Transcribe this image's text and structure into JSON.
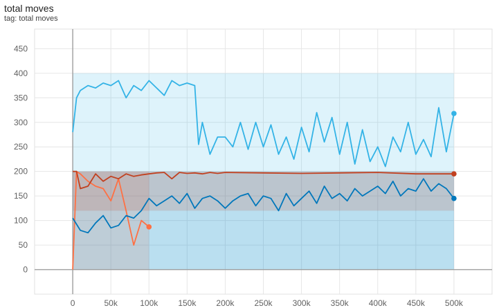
{
  "header": {
    "title": "total moves",
    "subtitle": "tag: total moves"
  },
  "chart_data": {
    "type": "line",
    "title": "total moves",
    "subtitle": "tag: total moves",
    "xlabel": "",
    "ylabel": "",
    "xlim": [
      -50000,
      550000
    ],
    "ylim": [
      -50,
      490
    ],
    "grid": true,
    "x_ticks": [
      "0",
      "50k",
      "100k",
      "150k",
      "200k",
      "250k",
      "300k",
      "350k",
      "400k",
      "450k",
      "500k"
    ],
    "x_tick_values": [
      0,
      50000,
      100000,
      150000,
      200000,
      250000,
      300000,
      350000,
      400000,
      450000,
      500000
    ],
    "y_ticks": [
      "0",
      "50",
      "100",
      "150",
      "200",
      "250",
      "300",
      "350",
      "400",
      "450"
    ],
    "y_tick_values": [
      0,
      50,
      100,
      150,
      200,
      250,
      300,
      350,
      400,
      450
    ],
    "series": [
      {
        "color": "#33b3e6",
        "raw_band": [
          0,
          400
        ],
        "x": [
          0,
          5000,
          10000,
          20000,
          30000,
          40000,
          50000,
          60000,
          70000,
          80000,
          90000,
          100000,
          110000,
          120000,
          130000,
          140000,
          150000,
          160000,
          165000,
          170000,
          180000,
          190000,
          200000,
          210000,
          220000,
          230000,
          240000,
          250000,
          260000,
          270000,
          280000,
          290000,
          300000,
          310000,
          320000,
          330000,
          340000,
          350000,
          360000,
          370000,
          380000,
          390000,
          400000,
          410000,
          420000,
          430000,
          440000,
          450000,
          460000,
          470000,
          480000,
          490000,
          500000
        ],
        "values": [
          280,
          350,
          365,
          375,
          370,
          380,
          375,
          385,
          350,
          375,
          365,
          385,
          370,
          355,
          385,
          375,
          380,
          375,
          255,
          300,
          235,
          270,
          270,
          250,
          300,
          245,
          300,
          250,
          295,
          235,
          270,
          225,
          290,
          240,
          320,
          260,
          310,
          235,
          300,
          215,
          285,
          220,
          250,
          210,
          270,
          240,
          300,
          235,
          265,
          230,
          330,
          240,
          318
        ]
      },
      {
        "color": "#ff7043",
        "raw_band": [
          0,
          200
        ],
        "x": [
          0,
          5000,
          10000,
          20000,
          30000,
          40000,
          50000,
          60000,
          70000,
          80000,
          90000,
          100000
        ],
        "values": [
          0,
          200,
          195,
          180,
          170,
          165,
          140,
          185,
          120,
          50,
          100,
          87
        ]
      },
      {
        "color": "#0077bb",
        "raw_band": [
          0,
          200
        ],
        "x": [
          0,
          10000,
          20000,
          30000,
          40000,
          50000,
          60000,
          70000,
          80000,
          90000,
          100000,
          110000,
          120000,
          130000,
          140000,
          150000,
          160000,
          170000,
          180000,
          190000,
          200000,
          210000,
          220000,
          230000,
          240000,
          250000,
          260000,
          270000,
          280000,
          290000,
          300000,
          310000,
          320000,
          330000,
          340000,
          350000,
          360000,
          370000,
          380000,
          390000,
          400000,
          410000,
          420000,
          430000,
          440000,
          450000,
          460000,
          470000,
          480000,
          490000,
          500000
        ],
        "values": [
          105,
          80,
          75,
          95,
          110,
          85,
          90,
          110,
          105,
          120,
          145,
          130,
          140,
          150,
          135,
          155,
          125,
          145,
          150,
          140,
          125,
          140,
          150,
          155,
          130,
          150,
          145,
          120,
          155,
          130,
          145,
          160,
          135,
          170,
          145,
          155,
          140,
          165,
          150,
          160,
          170,
          155,
          180,
          150,
          165,
          160,
          185,
          160,
          175,
          165,
          145
        ]
      },
      {
        "color": "#c1401f",
        "raw_band": [
          120,
          200
        ],
        "x": [
          0,
          5000,
          10000,
          20000,
          30000,
          40000,
          50000,
          60000,
          70000,
          80000,
          90000,
          100000,
          110000,
          120000,
          130000,
          140000,
          150000,
          160000,
          170000,
          180000,
          190000,
          200000,
          250000,
          300000,
          350000,
          400000,
          450000,
          500000
        ],
        "values": [
          200,
          200,
          165,
          170,
          195,
          180,
          190,
          185,
          195,
          190,
          193,
          195,
          197,
          198,
          185,
          198,
          196,
          197,
          195,
          198,
          196,
          198,
          197,
          196,
          197,
          198,
          195,
          195
        ]
      }
    ]
  }
}
